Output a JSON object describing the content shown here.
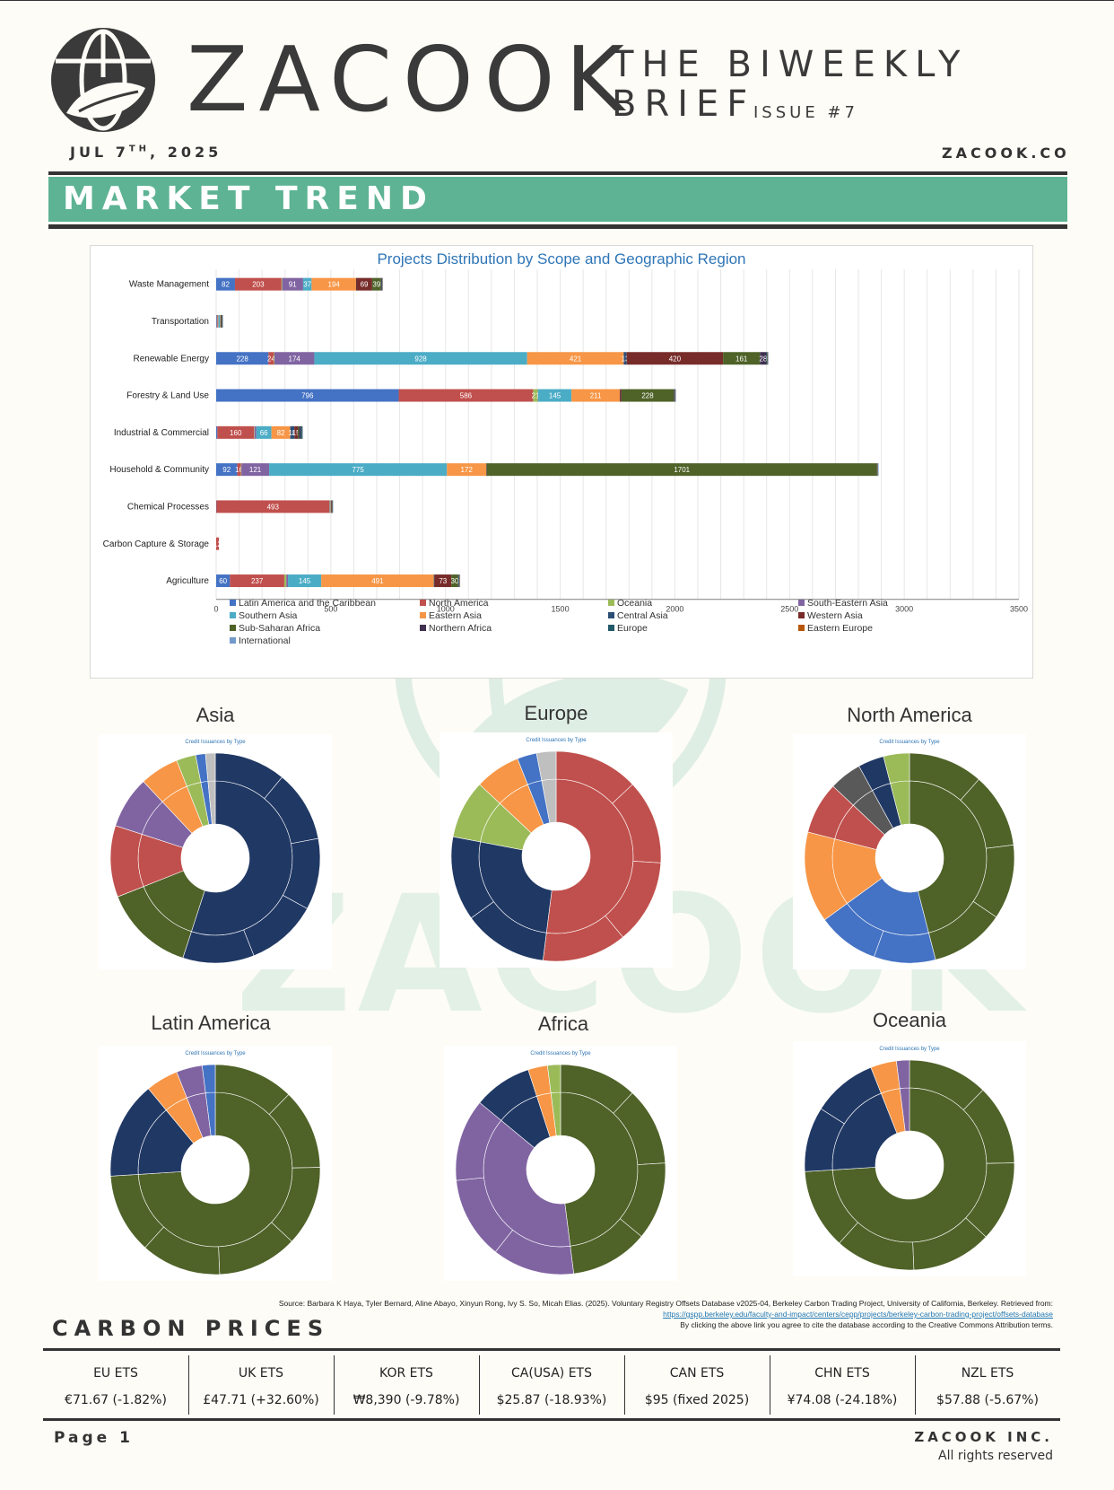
{
  "header": {
    "brand": "ZACOOK",
    "brief_line1": "THE BIWEEKLY",
    "brief_line2": "BRIEF",
    "issue": "ISSUE #7",
    "date_prefix": "JUL 7",
    "date_sup": "TH",
    "date_suffix": ", 2025",
    "site": "ZACOOK.CO"
  },
  "banner": {
    "title": "MARKET TREND"
  },
  "watermark": {
    "text": "ZACOOK"
  },
  "chart_data": {
    "type": "bar",
    "orientation": "horizontal-stacked",
    "title": "Projects Distribution by Scope and Geographic Region",
    "categories": [
      "Waste Management",
      "Transportation",
      "Renewable Energy",
      "Forestry & Land Use",
      "Industrial & Commercial",
      "Household & Community",
      "Chemical Processes",
      "Carbon Capture & Storage",
      "Agriculture"
    ],
    "xlim": [
      0,
      3500
    ],
    "xticks": [
      0,
      500,
      1000,
      1500,
      2000,
      2500,
      3000,
      3500
    ],
    "grid": true,
    "legend_position": "bottom",
    "series": [
      {
        "name": "Latin America and the Caribbean",
        "color": "#4472c4",
        "values": [
          82,
          3,
          228,
          796,
          5,
          92,
          1,
          0,
          60
        ]
      },
      {
        "name": "North America",
        "color": "#c0504d",
        "values": [
          203,
          4,
          24,
          586,
          160,
          16,
          493,
          12,
          237
        ]
      },
      {
        "name": "Oceania",
        "color": "#9bbb59",
        "values": [
          3,
          2,
          2,
          21,
          2,
          2,
          1,
          0,
          9
        ]
      },
      {
        "name": "South-Eastern Asia",
        "color": "#8064a2",
        "values": [
          91,
          2,
          174,
          1,
          8,
          121,
          1,
          0,
          7
        ]
      },
      {
        "name": "Southern Asia",
        "color": "#4bacc6",
        "values": [
          37,
          6,
          928,
          145,
          66,
          775,
          2,
          0,
          145
        ]
      },
      {
        "name": "Eastern Asia",
        "color": "#f79646",
        "values": [
          194,
          2,
          421,
          211,
          82,
          172,
          2,
          0,
          491
        ]
      },
      {
        "name": "Central Asia",
        "color": "#2c4d75",
        "values": [
          1,
          1,
          13,
          1,
          18,
          1,
          1,
          0,
          3
        ]
      },
      {
        "name": "Western Asia",
        "color": "#772c2a",
        "values": [
          69,
          1,
          420,
          6,
          15,
          1,
          2,
          0,
          73
        ]
      },
      {
        "name": "Sub-Saharan Africa",
        "color": "#4f6228",
        "values": [
          39,
          3,
          161,
          228,
          5,
          1701,
          1,
          0,
          30
        ]
      },
      {
        "name": "Northern Africa",
        "color": "#403151",
        "values": [
          3,
          1,
          28,
          3,
          7,
          2,
          1,
          0,
          2
        ]
      },
      {
        "name": "Europe",
        "color": "#215968",
        "values": [
          2,
          2,
          5,
          3,
          7,
          2,
          2,
          0,
          3
        ]
      },
      {
        "name": "Eastern Europe",
        "color": "#b65708",
        "values": [
          1,
          1,
          2,
          2,
          1,
          1,
          1,
          0,
          2
        ]
      },
      {
        "name": "International",
        "color": "#729aca",
        "values": [
          1,
          1,
          2,
          2,
          1,
          2,
          1,
          0,
          1
        ]
      }
    ]
  },
  "regions": [
    {
      "name": "Asia",
      "subtitle": "Credit Issuances by Type"
    },
    {
      "name": "Europe",
      "subtitle": "Credit Issuances by Type"
    },
    {
      "name": "North America",
      "subtitle": "Credit Issuances by Type"
    },
    {
      "name": "Latin America",
      "subtitle": "Credit Issuances by Type"
    },
    {
      "name": "Africa",
      "subtitle": "Credit Issuances by Type"
    },
    {
      "name": "Oceania",
      "subtitle": "Credit Issuances by Type"
    }
  ],
  "sunbursts": [
    {
      "slices": [
        {
          "c": "#203864",
          "v": 55
        },
        {
          "c": "#4f6228",
          "v": 14
        },
        {
          "c": "#c0504d",
          "v": 11
        },
        {
          "c": "#8064a2",
          "v": 8
        },
        {
          "c": "#f79646",
          "v": 6
        },
        {
          "c": "#9bbb59",
          "v": 3
        },
        {
          "c": "#4472c4",
          "v": 1.5
        },
        {
          "c": "#bfbfbf",
          "v": 1.5
        }
      ]
    },
    {
      "slices": [
        {
          "c": "#c0504d",
          "v": 52
        },
        {
          "c": "#203864",
          "v": 26
        },
        {
          "c": "#9bbb59",
          "v": 9
        },
        {
          "c": "#f79646",
          "v": 7
        },
        {
          "c": "#4472c4",
          "v": 3
        },
        {
          "c": "#bfbfbf",
          "v": 3
        }
      ]
    },
    {
      "slices": [
        {
          "c": "#4f6228",
          "v": 46
        },
        {
          "c": "#4472c4",
          "v": 19
        },
        {
          "c": "#f79646",
          "v": 14
        },
        {
          "c": "#c0504d",
          "v": 8
        },
        {
          "c": "#595959",
          "v": 5
        },
        {
          "c": "#203864",
          "v": 4
        },
        {
          "c": "#9bbb59",
          "v": 4
        }
      ]
    },
    {
      "slices": [
        {
          "c": "#4f6228",
          "v": 74
        },
        {
          "c": "#203864",
          "v": 15
        },
        {
          "c": "#f79646",
          "v": 5
        },
        {
          "c": "#8064a2",
          "v": 4
        },
        {
          "c": "#4472c4",
          "v": 2
        }
      ]
    },
    {
      "slices": [
        {
          "c": "#4f6228",
          "v": 48
        },
        {
          "c": "#8064a2",
          "v": 38
        },
        {
          "c": "#203864",
          "v": 9
        },
        {
          "c": "#f79646",
          "v": 3
        },
        {
          "c": "#9bbb59",
          "v": 2
        }
      ]
    },
    {
      "slices": [
        {
          "c": "#4f6228",
          "v": 74
        },
        {
          "c": "#203864",
          "v": 20
        },
        {
          "c": "#f79646",
          "v": 4
        },
        {
          "c": "#8064a2",
          "v": 2
        }
      ]
    }
  ],
  "source": {
    "line1": "Source: Barbara K Haya, Tyler Bernard, Aline Abayo, Xinyun Rong, Ivy S. So, Micah Elias. (2025). Voluntary Registry Offsets Database v2025-04, Berkeley Carbon Trading Project, University of California, Berkeley. Retrieved from:",
    "link": "https://gspp.berkeley.edu/faculty-and-impact/centers/cepp/projects/berkeley-carbon-trading-project/offsets-database",
    "line3": "By clicking the above link you agree to cite the database according to the Creative Commons Attribution terms."
  },
  "carbon_prices": {
    "title": "CARBON PRICES",
    "items": [
      {
        "name": "EU ETS",
        "value": "€71.67 (-1.82%)"
      },
      {
        "name": "UK ETS",
        "value": "£47.71 (+32.60%)"
      },
      {
        "name": "KOR ETS",
        "value": "₩8,390 (-9.78%)"
      },
      {
        "name": "CA(USA) ETS",
        "value": "$25.87 (-18.93%)"
      },
      {
        "name": "CAN ETS",
        "value": "$95 (fixed 2025)"
      },
      {
        "name": "CHN ETS",
        "value": "¥74.08 (-24.18%)"
      },
      {
        "name": "NZL ETS",
        "value": "$57.88 (-5.67%)"
      }
    ]
  },
  "footer": {
    "page": "Page 1",
    "company": "ZACOOK INC.",
    "rights": "All rights reserved"
  }
}
